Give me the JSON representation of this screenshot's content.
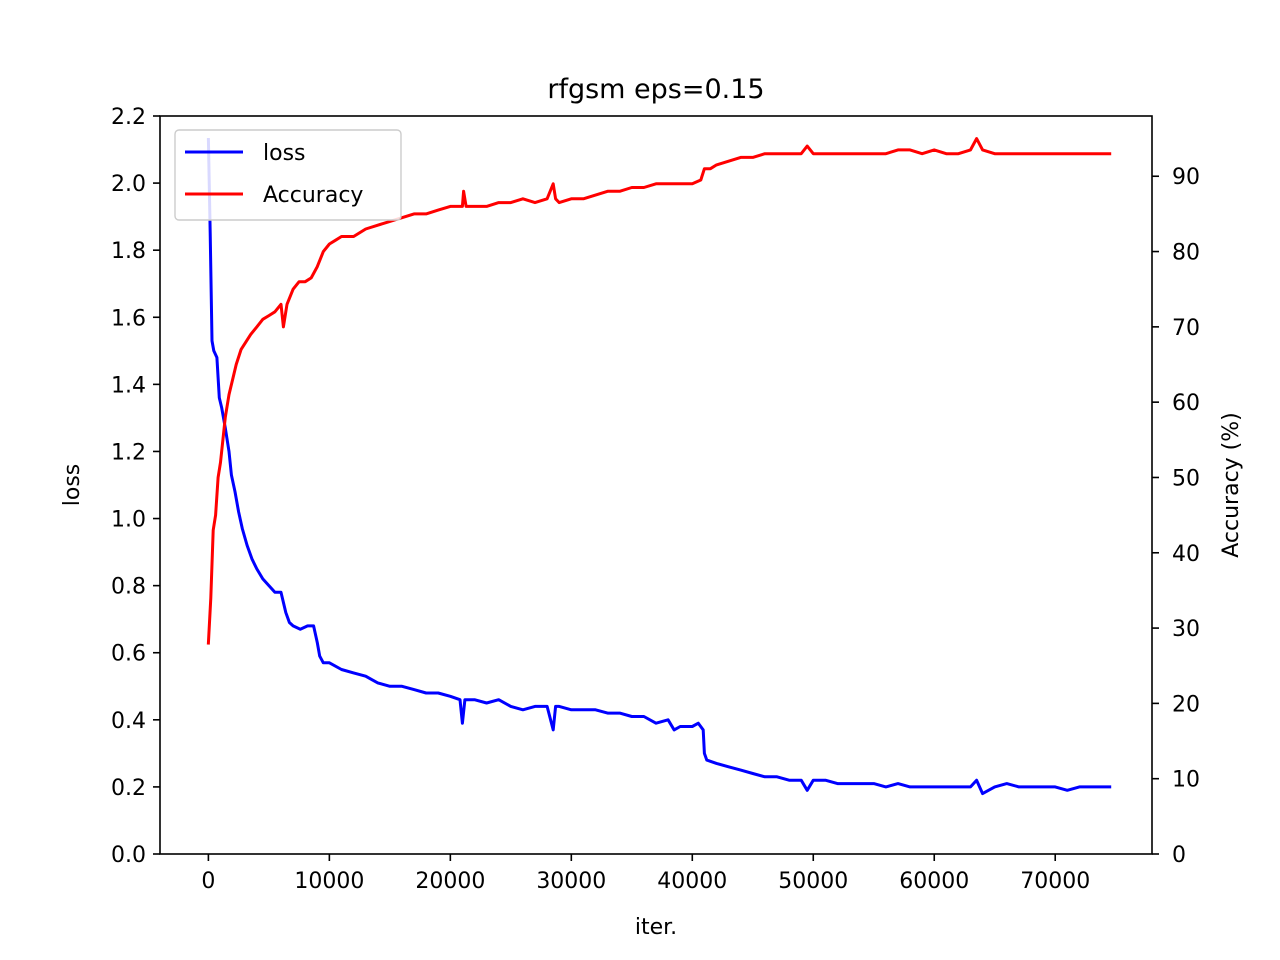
{
  "chart_data": {
    "type": "line",
    "title": "rfgsm eps=0.15",
    "xlabel": "iter.",
    "ylabel_left": "loss",
    "ylabel_right": "Accuracy (%)",
    "xlim": [
      -4000,
      78000
    ],
    "ylim_left": [
      0,
      2.2
    ],
    "ylim_right": [
      0,
      98
    ],
    "x_ticks": [
      0,
      10000,
      20000,
      30000,
      40000,
      50000,
      60000,
      70000
    ],
    "y_ticks_left": [
      0.0,
      0.2,
      0.4,
      0.6,
      0.8,
      1.0,
      1.2,
      1.4,
      1.6,
      1.8,
      2.0,
      2.2
    ],
    "y_ticks_left_labels": [
      "0.0",
      "0.2",
      "0.4",
      "0.6",
      "0.8",
      "1.0",
      "1.2",
      "1.4",
      "1.6",
      "1.8",
      "2.0",
      "2.2"
    ],
    "y_ticks_right": [
      0,
      10,
      20,
      30,
      40,
      50,
      60,
      70,
      80,
      90
    ],
    "grid": false,
    "legend": "top-left",
    "series": [
      {
        "name": "loss",
        "axis": "left",
        "color": "#0000ff",
        "x": [
          0,
          150,
          300,
          450,
          700,
          900,
          1100,
          1400,
          1700,
          1900,
          2200,
          2500,
          2800,
          3200,
          3600,
          4000,
          4500,
          5000,
          5500,
          6000,
          6400,
          6700,
          7000,
          7600,
          8200,
          8700,
          9000,
          9200,
          9500,
          10000,
          11000,
          12000,
          13000,
          13500,
          14000,
          15000,
          16000,
          17000,
          18000,
          19000,
          20000,
          20800,
          21000,
          21200,
          22000,
          23000,
          24000,
          25000,
          26000,
          27000,
          28000,
          28500,
          28700,
          29000,
          30000,
          31000,
          32000,
          33000,
          34000,
          35000,
          36000,
          37000,
          38000,
          38500,
          39000,
          40000,
          40500,
          40900,
          41000,
          41200,
          42000,
          43000,
          44000,
          45000,
          46000,
          47000,
          48000,
          49000,
          49500,
          50000,
          51000,
          52000,
          53000,
          54000,
          55000,
          56000,
          57000,
          58000,
          59000,
          60000,
          61000,
          62000,
          63000,
          63500,
          64000,
          65000,
          66000,
          67000,
          68000,
          69000,
          70000,
          71000,
          72000,
          73000,
          74500
        ],
        "values": [
          2.13,
          1.85,
          1.53,
          1.5,
          1.48,
          1.36,
          1.33,
          1.27,
          1.2,
          1.13,
          1.08,
          1.02,
          0.97,
          0.92,
          0.88,
          0.85,
          0.82,
          0.8,
          0.78,
          0.78,
          0.72,
          0.69,
          0.68,
          0.67,
          0.68,
          0.68,
          0.63,
          0.59,
          0.57,
          0.57,
          0.55,
          0.54,
          0.53,
          0.52,
          0.51,
          0.5,
          0.5,
          0.49,
          0.48,
          0.48,
          0.47,
          0.46,
          0.39,
          0.46,
          0.46,
          0.45,
          0.46,
          0.44,
          0.43,
          0.44,
          0.44,
          0.37,
          0.44,
          0.44,
          0.43,
          0.43,
          0.43,
          0.42,
          0.42,
          0.41,
          0.41,
          0.39,
          0.4,
          0.37,
          0.38,
          0.38,
          0.39,
          0.37,
          0.3,
          0.28,
          0.27,
          0.26,
          0.25,
          0.24,
          0.23,
          0.23,
          0.22,
          0.22,
          0.19,
          0.22,
          0.22,
          0.21,
          0.21,
          0.21,
          0.21,
          0.2,
          0.21,
          0.2,
          0.2,
          0.2,
          0.2,
          0.2,
          0.2,
          0.22,
          0.18,
          0.2,
          0.21,
          0.2,
          0.2,
          0.2,
          0.2,
          0.19,
          0.2,
          0.2,
          0.2
        ]
      },
      {
        "name": "Accuracy",
        "axis": "right",
        "color": "#ff0000",
        "x": [
          0,
          200,
          400,
          600,
          800,
          1000,
          1200,
          1400,
          1700,
          2000,
          2300,
          2700,
          3100,
          3500,
          4000,
          4500,
          5000,
          5500,
          6000,
          6200,
          6500,
          7000,
          7500,
          8000,
          8500,
          9000,
          9500,
          10000,
          10500,
          11000,
          12000,
          13000,
          14000,
          15000,
          16000,
          17000,
          18000,
          19000,
          20000,
          21000,
          21100,
          21300,
          22000,
          23000,
          24000,
          25000,
          26000,
          27000,
          28000,
          28500,
          28700,
          29000,
          30000,
          31000,
          32000,
          33000,
          34000,
          35000,
          36000,
          37000,
          38000,
          39000,
          40000,
          40700,
          41000,
          41500,
          42000,
          43000,
          44000,
          45000,
          46000,
          47000,
          48000,
          49000,
          49500,
          50000,
          51000,
          52000,
          53000,
          54000,
          55000,
          56000,
          57000,
          58000,
          59000,
          60000,
          61000,
          62000,
          63000,
          63500,
          64000,
          65000,
          66000,
          67000,
          68000,
          69000,
          70000,
          71000,
          72000,
          73000,
          74500
        ],
        "values": [
          28,
          34,
          43,
          45,
          50,
          52,
          55,
          58,
          61,
          63,
          65,
          67,
          68,
          69,
          70,
          71,
          71.5,
          72,
          73,
          70,
          73,
          75,
          76,
          76,
          76.5,
          78,
          80,
          81,
          81.5,
          82,
          82,
          83,
          83.5,
          84,
          84.5,
          85,
          85,
          85.5,
          86,
          86,
          88,
          86,
          86,
          86,
          86.5,
          86.5,
          87,
          86.5,
          87,
          89,
          87,
          86.5,
          87,
          87,
          87.5,
          88,
          88,
          88.5,
          88.5,
          89,
          89,
          89,
          89,
          89.5,
          91,
          91,
          91.5,
          92,
          92.5,
          92.5,
          93,
          93,
          93,
          93,
          94,
          93,
          93,
          93,
          93,
          93,
          93,
          93,
          93.5,
          93.5,
          93,
          93.5,
          93,
          93,
          93.5,
          95,
          93.5,
          93,
          93,
          93,
          93,
          93,
          93,
          93,
          93,
          93,
          93
        ]
      }
    ]
  }
}
